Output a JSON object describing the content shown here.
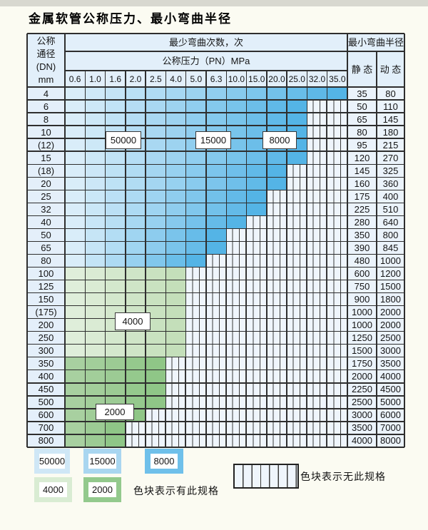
{
  "title": "金属软管公称压力、最小弯曲半径",
  "table": {
    "dn_header_lines": [
      "公称",
      "通径",
      "(DN)",
      "mm"
    ],
    "cycles_header": "最少弯曲次数，次",
    "pressure_header": "公称压力（PN）MPa",
    "radius_header": "最小弯曲半径",
    "static_label": "静 态",
    "dynamic_label": "动 态",
    "pressure_columns": [
      "0.6",
      "1.0",
      "1.6",
      "2.0",
      "2.5",
      "4.0",
      "5.0",
      "6.3",
      "10.0",
      "15.0",
      "20.0",
      "25.0",
      "32.0",
      "35.0"
    ]
  },
  "chart_data": {
    "type": "table",
    "note": "colored_cols = number of pressure columns (from 0.6 upward) for which the spec exists; remaining columns are hatched (no spec). zone = color family encoding minimum bend cycles.",
    "rows": [
      {
        "dn": "4",
        "colored_cols": 14,
        "zone": "blue",
        "static": "35",
        "dynamic": "80"
      },
      {
        "dn": "6",
        "colored_cols": 12,
        "zone": "blue",
        "static": "50",
        "dynamic": "110"
      },
      {
        "dn": "8",
        "colored_cols": 12,
        "zone": "blue",
        "static": "65",
        "dynamic": "145"
      },
      {
        "dn": "10",
        "colored_cols": 12,
        "zone": "blue",
        "static": "80",
        "dynamic": "180"
      },
      {
        "dn": "(12)",
        "colored_cols": 12,
        "zone": "blue",
        "static": "95",
        "dynamic": "215"
      },
      {
        "dn": "15",
        "colored_cols": 12,
        "zone": "blue",
        "static": "120",
        "dynamic": "270"
      },
      {
        "dn": "(18)",
        "colored_cols": 11,
        "zone": "blue",
        "static": "145",
        "dynamic": "325"
      },
      {
        "dn": "20",
        "colored_cols": 11,
        "zone": "blue",
        "static": "160",
        "dynamic": "360"
      },
      {
        "dn": "25",
        "colored_cols": 10,
        "zone": "blue",
        "static": "175",
        "dynamic": "400"
      },
      {
        "dn": "32",
        "colored_cols": 10,
        "zone": "blue",
        "static": "225",
        "dynamic": "510"
      },
      {
        "dn": "40",
        "colored_cols": 9,
        "zone": "blue",
        "static": "280",
        "dynamic": "640"
      },
      {
        "dn": "50",
        "colored_cols": 8,
        "zone": "blue",
        "static": "350",
        "dynamic": "800"
      },
      {
        "dn": "65",
        "colored_cols": 8,
        "zone": "blue",
        "static": "390",
        "dynamic": "845"
      },
      {
        "dn": "80",
        "colored_cols": 7,
        "zone": "blue",
        "static": "480",
        "dynamic": "1000"
      },
      {
        "dn": "100",
        "colored_cols": 6,
        "zone": "green_light",
        "static": "600",
        "dynamic": "1200"
      },
      {
        "dn": "125",
        "colored_cols": 6,
        "zone": "green_light",
        "static": "750",
        "dynamic": "1500"
      },
      {
        "dn": "150",
        "colored_cols": 6,
        "zone": "green_light",
        "static": "900",
        "dynamic": "1800"
      },
      {
        "dn": "(175)",
        "colored_cols": 6,
        "zone": "green_light",
        "static": "1000",
        "dynamic": "2000"
      },
      {
        "dn": "200",
        "colored_cols": 6,
        "zone": "green_light",
        "static": "1000",
        "dynamic": "2000"
      },
      {
        "dn": "250",
        "colored_cols": 6,
        "zone": "green_light",
        "static": "1250",
        "dynamic": "2500"
      },
      {
        "dn": "300",
        "colored_cols": 6,
        "zone": "green_light",
        "static": "1500",
        "dynamic": "3000"
      },
      {
        "dn": "350",
        "colored_cols": 5,
        "zone": "green_dark",
        "static": "1750",
        "dynamic": "3500"
      },
      {
        "dn": "400",
        "colored_cols": 5,
        "zone": "green_dark",
        "static": "2000",
        "dynamic": "4000"
      },
      {
        "dn": "450",
        "colored_cols": 5,
        "zone": "green_dark",
        "static": "2250",
        "dynamic": "4500"
      },
      {
        "dn": "500",
        "colored_cols": 5,
        "zone": "green_dark",
        "static": "2500",
        "dynamic": "5000"
      },
      {
        "dn": "600",
        "colored_cols": 4,
        "zone": "green_dark",
        "static": "3000",
        "dynamic": "6000"
      },
      {
        "dn": "700",
        "colored_cols": 3,
        "zone": "green_dark",
        "static": "3500",
        "dynamic": "7000"
      },
      {
        "dn": "800",
        "colored_cols": 3,
        "zone": "green_dark",
        "static": "4000",
        "dynamic": "8000"
      }
    ],
    "zones": {
      "blue": {
        "start": "#d9edf9",
        "end": "#54b4e6"
      },
      "green_light": {
        "start": "#dfeeda",
        "end": "#c4dfba"
      },
      "green_dark": {
        "start": "#a8d0a0",
        "end": "#8fc687"
      }
    },
    "hatch": {
      "bg": "#eff5fc",
      "line": "#3a3a3a"
    },
    "cycle_labels": [
      {
        "label": "50000"
      },
      {
        "label": "15000"
      },
      {
        "label": "8000"
      },
      {
        "label": "4000"
      },
      {
        "label": "2000"
      }
    ]
  },
  "legend": {
    "items": [
      {
        "label": "50000",
        "color": "#cfe7f6"
      },
      {
        "label": "15000",
        "color": "#a9d6f0"
      },
      {
        "label": "8000",
        "color": "#6fc0ea"
      },
      {
        "label": "4000",
        "color": "#d9ecd3"
      },
      {
        "label": "2000",
        "color": "#93c98d"
      }
    ],
    "has_spec_note": "色块表示有此规格",
    "no_spec_note": "色块表示无此规格"
  },
  "colors": {
    "header_bg": "#e2effa",
    "dn_cell_bg": "#e4effa",
    "value_cell_bg": "#ebf3fb",
    "grid_line": "#2e2e2e"
  }
}
